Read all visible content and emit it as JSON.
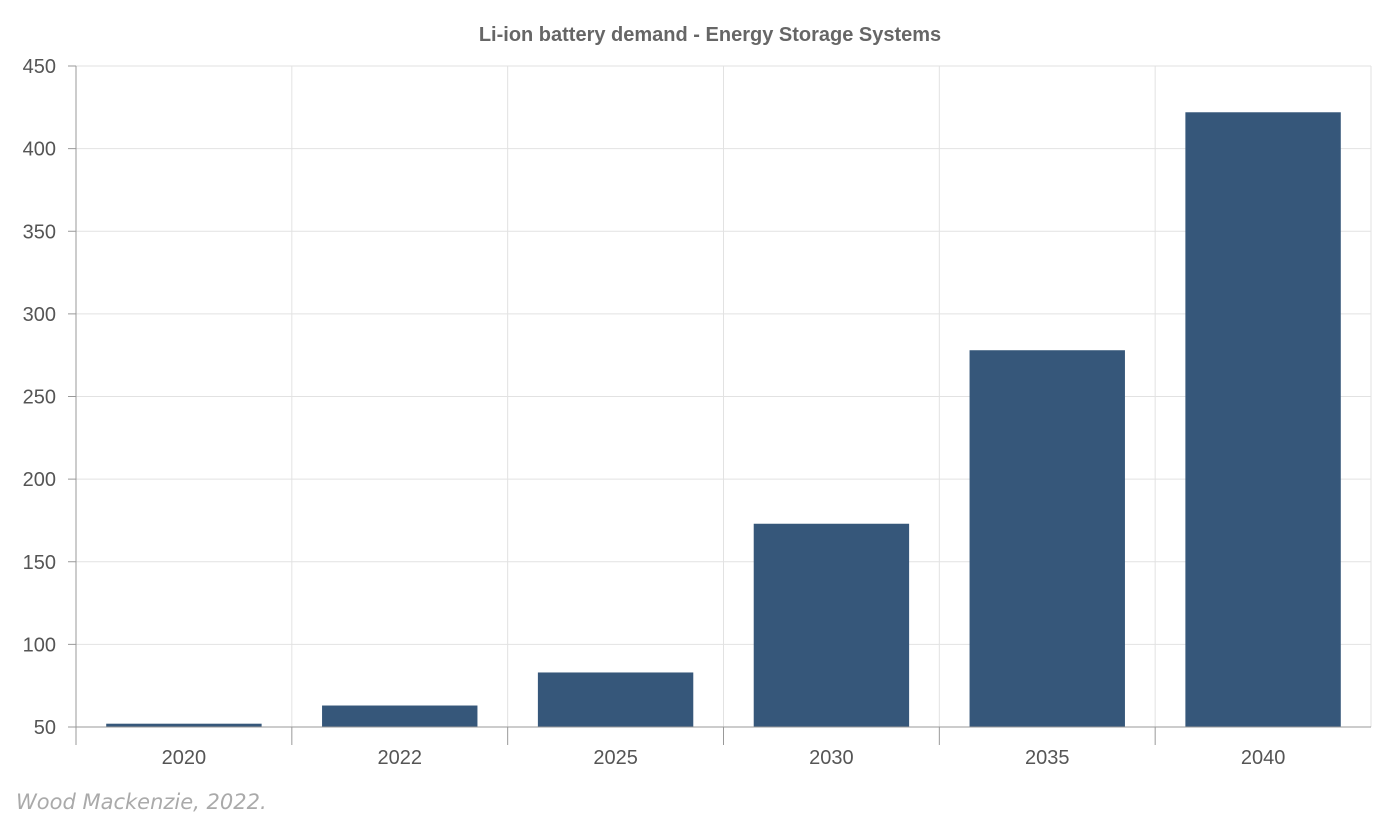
{
  "chart_data": {
    "type": "bar",
    "title": "Li-ion battery demand - Energy Storage Systems",
    "xlabel": "",
    "ylabel": "",
    "categories": [
      "2020",
      "2022",
      "2025",
      "2030",
      "2035",
      "2040"
    ],
    "values": [
      52,
      63,
      83,
      173,
      278,
      422
    ],
    "ylim": [
      50,
      450
    ],
    "yticks": [
      50,
      100,
      150,
      200,
      250,
      300,
      350,
      400,
      450
    ],
    "grid": true,
    "legend": "none",
    "bar_color": "#36577a",
    "grid_color": "#e2e2e2",
    "axis_color": "#999999"
  },
  "source": "Wood Mackenzie, 2022."
}
